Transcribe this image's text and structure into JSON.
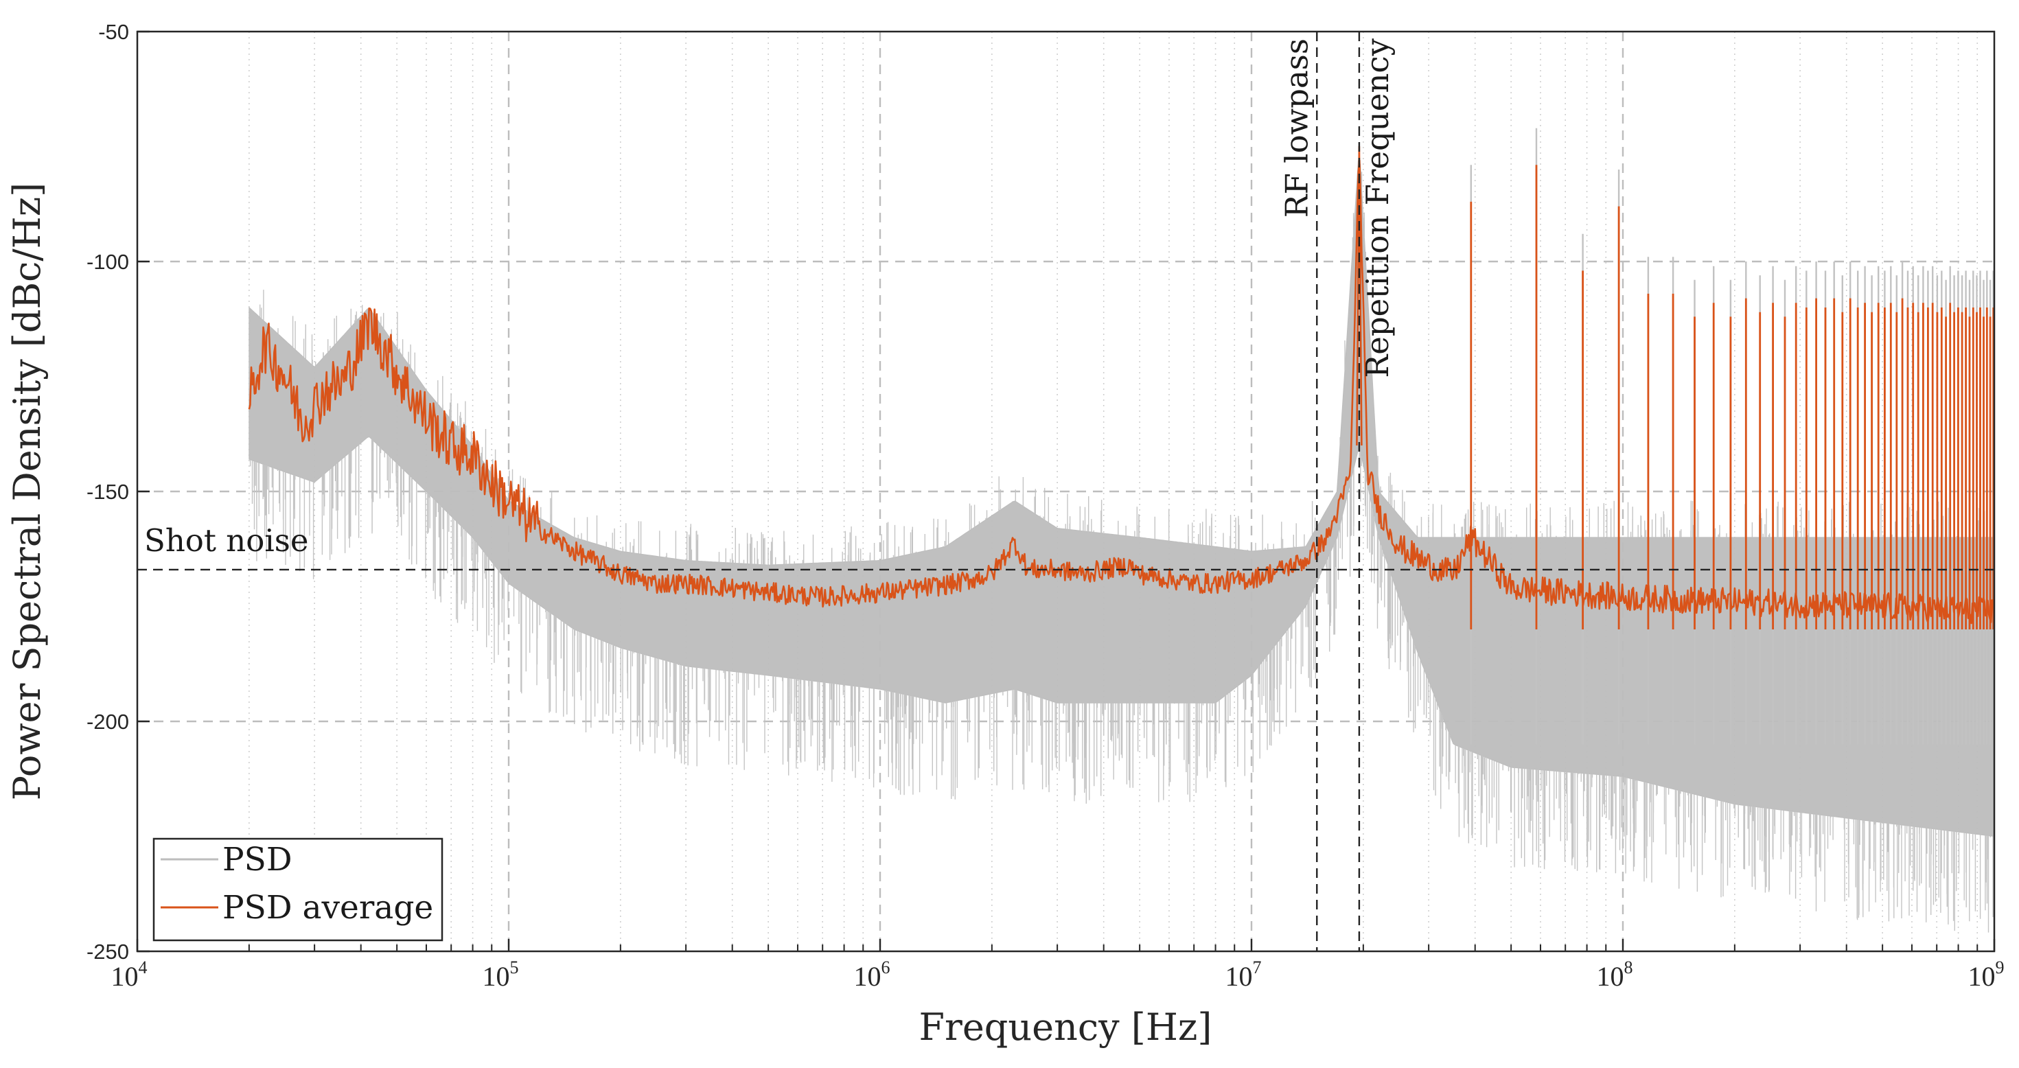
{
  "chart_data": {
    "type": "line",
    "xscale": "log",
    "xlim": [
      10000,
      1000000000
    ],
    "ylim": [
      -250,
      -50
    ],
    "xlabel": "Frequency [Hz]",
    "ylabel": "Power Spectral Density [dBc/Hz]",
    "yticks": [
      {
        "value": -50,
        "label": "-50"
      },
      {
        "value": -100,
        "label": "-100"
      },
      {
        "value": -150,
        "label": "-150"
      },
      {
        "value": -200,
        "label": "-200"
      },
      {
        "value": -250,
        "label": "-250"
      }
    ],
    "xticks": [
      {
        "value": 10000,
        "base": "10",
        "exp": "4"
      },
      {
        "value": 100000,
        "base": "10",
        "exp": "5"
      },
      {
        "value": 1000000,
        "base": "10",
        "exp": "6"
      },
      {
        "value": 10000000,
        "base": "10",
        "exp": "7"
      },
      {
        "value": 100000000,
        "base": "10",
        "exp": "8"
      },
      {
        "value": 1000000000,
        "base": "10",
        "exp": "9"
      }
    ],
    "grid": true,
    "repetition_frequency_hz": 19500000,
    "spike_frequencies_hz": [
      39000000,
      58500000,
      78000000,
      97500000,
      117000000,
      136500000,
      156000000,
      175500000,
      195000000,
      214500000,
      234000000,
      253500000,
      273000000,
      292500000,
      312000000,
      331500000,
      351000000,
      370500000,
      390000000,
      409500000,
      429000000,
      448500000,
      468000000,
      487500000,
      507000000,
      526500000,
      546000000,
      565500000,
      585000000,
      604500000,
      624000000,
      643500000,
      663000000,
      682500000,
      702000000,
      721500000,
      741000000,
      760500000,
      780000000,
      799500000,
      819000000,
      838500000,
      858000000,
      877500000,
      897000000,
      916500000,
      936000000,
      955500000,
      975000000,
      994500000
    ],
    "spike_peak_dbc": [
      -87,
      -79,
      -102,
      -88,
      -107,
      -107,
      -112,
      -109,
      -112,
      -108,
      -111,
      -109,
      -112,
      -109,
      -110,
      -108,
      -110,
      -108,
      -111,
      -108,
      -110,
      -109,
      -111,
      -109,
      -110,
      -109,
      -111,
      -108,
      -110,
      -109,
      -111,
      -109,
      -110,
      -109,
      -111,
      -110,
      -112,
      -109,
      -111,
      -110,
      -111,
      -110,
      -112,
      -110,
      -111,
      -110,
      -112,
      -110,
      -112,
      -110
    ],
    "series": [
      {
        "name": "PSD",
        "color": "#bdbdbd",
        "envelope_x": [
          20000,
          30000,
          42000,
          60000,
          80000,
          100000,
          150000,
          200000,
          300000,
          500000,
          1000000,
          1500000,
          2300000,
          3000000,
          5000000,
          8000000,
          10000000,
          14000000,
          17000000,
          19500000,
          22000000,
          28000000,
          35000000,
          50000000,
          100000000,
          200000000,
          500000000,
          1000000000
        ],
        "envelope_upper": [
          -110,
          -123,
          -110,
          -128,
          -140,
          -152,
          -160,
          -163,
          -165,
          -166,
          -165,
          -162,
          -152,
          -158,
          -160,
          -162,
          -163,
          -162,
          -150,
          -75,
          -150,
          -160,
          -160,
          -160,
          -160,
          -160,
          -160,
          -160
        ],
        "envelope_lower": [
          -143,
          -148,
          -138,
          -150,
          -160,
          -170,
          -180,
          -184,
          -188,
          -190,
          -193,
          -196,
          -193,
          -196,
          -196,
          -196,
          -190,
          -175,
          -160,
          -140,
          -160,
          -185,
          -205,
          -210,
          -212,
          -218,
          -222,
          -225
        ]
      },
      {
        "name": "PSD average",
        "color": "#d95319",
        "x": [
          20000,
          22000,
          25000,
          28000,
          32000,
          36000,
          40000,
          42000,
          45000,
          50000,
          60000,
          70000,
          80000,
          90000,
          100000,
          120000,
          150000,
          200000,
          250000,
          300000,
          400000,
          500000,
          700000,
          1000000,
          1300000,
          1600000,
          2000000,
          2300000,
          2500000,
          3000000,
          3500000,
          4000000,
          4700000,
          5000000,
          6000000,
          7000000,
          8000000,
          10000000,
          12000000,
          14000000,
          16000000,
          17500000,
          18500000,
          19500000,
          20500000,
          22000000,
          25000000,
          30000000,
          35000000,
          39000000,
          50000000,
          100000000,
          200000000,
          500000000,
          1000000000
        ],
        "y": [
          -130,
          -118,
          -125,
          -135,
          -128,
          -126,
          -118,
          -113,
          -117,
          -124,
          -134,
          -140,
          -142,
          -148,
          -152,
          -158,
          -163,
          -168,
          -170,
          -170,
          -171,
          -172,
          -173,
          -172,
          -171,
          -170,
          -168,
          -161,
          -167,
          -167,
          -168,
          -167,
          -166,
          -168,
          -169,
          -170,
          -170,
          -169,
          -167,
          -165,
          -160,
          -152,
          -145,
          -75,
          -145,
          -154,
          -162,
          -166,
          -168,
          -160,
          -171,
          -173,
          -174,
          -175,
          -176
        ]
      }
    ],
    "annotations": {
      "rf_lowpass": {
        "x": 15000000,
        "label": "RF lowpass"
      },
      "repetition_frequency": {
        "x": 19500000,
        "label": "Repetition Frequency"
      },
      "shot_noise": {
        "y": -167,
        "label": "Shot noise"
      }
    },
    "legend": {
      "placement": "bottom-left",
      "entries": [
        "PSD",
        "PSD average"
      ]
    }
  }
}
